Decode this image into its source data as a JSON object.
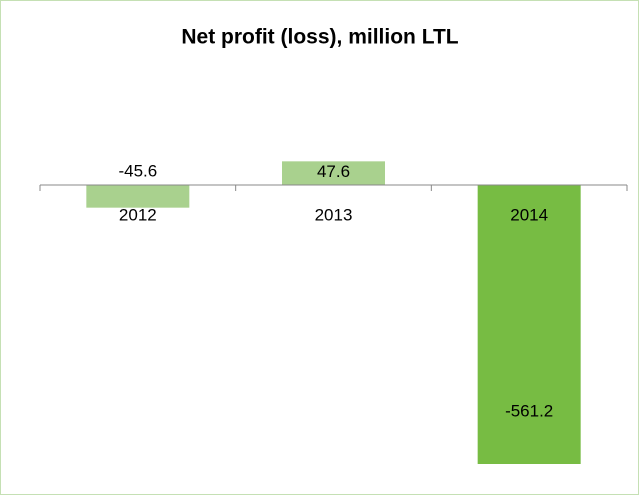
{
  "chart_data": {
    "type": "bar",
    "title": "Net profit (loss), million LTL",
    "categories": [
      "2012",
      "2013",
      "2014"
    ],
    "values": [
      -45.6,
      47.6,
      -561.2
    ],
    "colors": [
      "#a9d18e",
      "#a9d18e",
      "#77bc43"
    ]
  }
}
